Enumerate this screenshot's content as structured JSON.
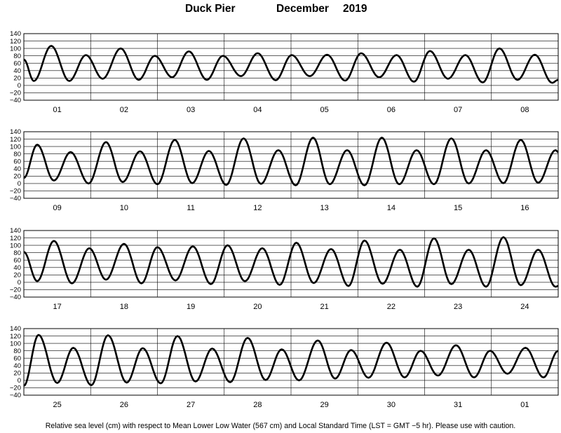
{
  "header": {
    "station": "Duck Pier",
    "month": "December",
    "year": "2019"
  },
  "footer": {
    "note": "Relative sea level (cm) with respect to Mean Lower Low Water (567 cm) and Local Standard Time (LST = GMT −5 hr). Please use with caution."
  },
  "chart_data": [
    {
      "type": "line",
      "ylim": [
        -40,
        140
      ],
      "yticks": [
        "140",
        "120",
        "100",
        "80",
        "60",
        "40",
        "20",
        "0",
        "−20",
        "−40"
      ],
      "day_labels": [
        "01",
        "02",
        "03",
        "04",
        "05",
        "06",
        "07",
        "08"
      ],
      "tide_extremes": [
        [
          0.0,
          70
        ],
        [
          0.15,
          12
        ],
        [
          0.41,
          107
        ],
        [
          0.68,
          12
        ],
        [
          0.93,
          82
        ],
        [
          1.18,
          18
        ],
        [
          1.45,
          100
        ],
        [
          1.72,
          15
        ],
        [
          1.96,
          80
        ],
        [
          2.22,
          22
        ],
        [
          2.47,
          92
        ],
        [
          2.74,
          15
        ],
        [
          2.98,
          80
        ],
        [
          3.25,
          25
        ],
        [
          3.5,
          87
        ],
        [
          3.77,
          14
        ],
        [
          4.01,
          82
        ],
        [
          4.28,
          25
        ],
        [
          4.54,
          83
        ],
        [
          4.81,
          13
        ],
        [
          5.05,
          87
        ],
        [
          5.32,
          22
        ],
        [
          5.58,
          82
        ],
        [
          5.84,
          10
        ],
        [
          6.08,
          93
        ],
        [
          6.35,
          18
        ],
        [
          6.61,
          82
        ],
        [
          6.87,
          8
        ],
        [
          7.12,
          100
        ],
        [
          7.39,
          15
        ],
        [
          7.65,
          83
        ],
        [
          7.91,
          7
        ],
        [
          8.0,
          15
        ]
      ]
    },
    {
      "type": "line",
      "ylim": [
        -40,
        140
      ],
      "yticks": [
        "140",
        "120",
        "100",
        "80",
        "60",
        "40",
        "20",
        "0",
        "−20",
        "−40"
      ],
      "day_labels": [
        "09",
        "10",
        "11",
        "12",
        "13",
        "14",
        "15",
        "16"
      ],
      "tide_extremes": [
        [
          0.0,
          15
        ],
        [
          0.2,
          105
        ],
        [
          0.45,
          8
        ],
        [
          0.7,
          85
        ],
        [
          0.97,
          0
        ],
        [
          1.23,
          112
        ],
        [
          1.48,
          4
        ],
        [
          1.74,
          87
        ],
        [
          2.0,
          -2
        ],
        [
          2.26,
          118
        ],
        [
          2.52,
          1
        ],
        [
          2.77,
          88
        ],
        [
          3.03,
          -4
        ],
        [
          3.29,
          122
        ],
        [
          3.55,
          -1
        ],
        [
          3.81,
          90
        ],
        [
          4.07,
          -5
        ],
        [
          4.33,
          124
        ],
        [
          4.58,
          -2
        ],
        [
          4.84,
          90
        ],
        [
          5.1,
          -5
        ],
        [
          5.36,
          124
        ],
        [
          5.62,
          -2
        ],
        [
          5.88,
          90
        ],
        [
          6.14,
          -2
        ],
        [
          6.4,
          122
        ],
        [
          6.66,
          0
        ],
        [
          6.92,
          90
        ],
        [
          7.18,
          1
        ],
        [
          7.44,
          118
        ],
        [
          7.7,
          2
        ],
        [
          7.96,
          90
        ],
        [
          8.0,
          85
        ]
      ]
    },
    {
      "type": "line",
      "ylim": [
        -40,
        140
      ],
      "yticks": [
        "140",
        "120",
        "100",
        "80",
        "60",
        "40",
        "20",
        "0",
        "−20",
        "−40"
      ],
      "day_labels": [
        "17",
        "18",
        "19",
        "20",
        "21",
        "22",
        "23",
        "24"
      ],
      "tide_extremes": [
        [
          0.0,
          82
        ],
        [
          0.2,
          3
        ],
        [
          0.45,
          112
        ],
        [
          0.72,
          -3
        ],
        [
          0.98,
          92
        ],
        [
          1.23,
          7
        ],
        [
          1.5,
          104
        ],
        [
          1.76,
          -3
        ],
        [
          2.0,
          95
        ],
        [
          2.27,
          5
        ],
        [
          2.53,
          97
        ],
        [
          2.8,
          -5
        ],
        [
          3.05,
          100
        ],
        [
          3.31,
          3
        ],
        [
          3.57,
          92
        ],
        [
          3.83,
          -7
        ],
        [
          4.08,
          107
        ],
        [
          4.34,
          -2
        ],
        [
          4.6,
          90
        ],
        [
          4.86,
          -10
        ],
        [
          5.1,
          113
        ],
        [
          5.37,
          -4
        ],
        [
          5.63,
          88
        ],
        [
          5.89,
          -12
        ],
        [
          6.14,
          119
        ],
        [
          6.4,
          -5
        ],
        [
          6.66,
          88
        ],
        [
          6.92,
          -12
        ],
        [
          7.18,
          122
        ],
        [
          7.44,
          -8
        ],
        [
          7.7,
          88
        ],
        [
          7.96,
          -12
        ],
        [
          8.0,
          -10
        ]
      ]
    },
    {
      "type": "line",
      "ylim": [
        -40,
        140
      ],
      "yticks": [
        "140",
        "120",
        "100",
        "80",
        "60",
        "40",
        "20",
        "0",
        "−20",
        "−40"
      ],
      "day_labels": [
        "25",
        "26",
        "27",
        "28",
        "29",
        "30",
        "31",
        "01"
      ],
      "tide_extremes": [
        [
          0.0,
          -15
        ],
        [
          0.22,
          123
        ],
        [
          0.5,
          -7
        ],
        [
          0.74,
          88
        ],
        [
          1.01,
          -13
        ],
        [
          1.26,
          122
        ],
        [
          1.54,
          -6
        ],
        [
          1.78,
          87
        ],
        [
          2.05,
          -8
        ],
        [
          2.3,
          120
        ],
        [
          2.57,
          -3
        ],
        [
          2.82,
          86
        ],
        [
          3.09,
          -5
        ],
        [
          3.35,
          115
        ],
        [
          3.62,
          1
        ],
        [
          3.86,
          84
        ],
        [
          4.12,
          0
        ],
        [
          4.4,
          108
        ],
        [
          4.66,
          5
        ],
        [
          4.9,
          82
        ],
        [
          5.16,
          7
        ],
        [
          5.43,
          102
        ],
        [
          5.7,
          8
        ],
        [
          5.94,
          80
        ],
        [
          6.2,
          13
        ],
        [
          6.47,
          95
        ],
        [
          6.74,
          8
        ],
        [
          6.98,
          80
        ],
        [
          7.24,
          18
        ],
        [
          7.51,
          88
        ],
        [
          7.78,
          8
        ],
        [
          8.0,
          80
        ]
      ]
    }
  ]
}
